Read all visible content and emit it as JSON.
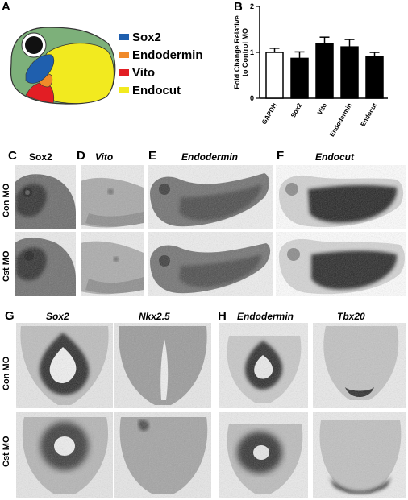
{
  "panels": {
    "a": "A",
    "b": "B",
    "c": "C",
    "d": "D",
    "e": "E",
    "f": "F",
    "g": "G",
    "h": "H"
  },
  "legend": [
    {
      "label": "Sox2",
      "color": "#1f5fae"
    },
    {
      "label": "Endodermin",
      "color": "#f08a2a"
    },
    {
      "label": "Vito",
      "color": "#e21e24"
    },
    {
      "label": "Endocut",
      "color": "#f2ea1f"
    }
  ],
  "colors": {
    "embryo_body": "#7db07a",
    "eye_ring": "#ffffff",
    "eye": "#111111"
  },
  "chart_data": {
    "type": "bar",
    "categories": [
      "GAPDH",
      "Sox2",
      "Vito",
      "Endodermin",
      "Endocut"
    ],
    "values": [
      1.0,
      0.87,
      1.18,
      1.12,
      0.9
    ],
    "errors": [
      0.09,
      0.14,
      0.15,
      0.16,
      0.1
    ],
    "bar_fills": [
      "#ffffff",
      "#000000",
      "#000000",
      "#000000",
      "#000000"
    ],
    "ylabel": "Fold Change Relative to Control MO",
    "ylim": [
      0,
      2
    ],
    "yticks": [
      "0",
      "1",
      "2"
    ],
    "title": "",
    "xlabel": "",
    "grid": false
  },
  "row_labels": {
    "con": "Con MO",
    "cst": "Cst MO"
  },
  "titles_cf": {
    "c": "Sox2",
    "d": "Vito",
    "e": "Endodermin",
    "f": "Endocut"
  },
  "titles_gh": {
    "g1": "Sox2",
    "g2": "Nkx2.5",
    "h1": "Endodermin",
    "h2": "Tbx20"
  }
}
